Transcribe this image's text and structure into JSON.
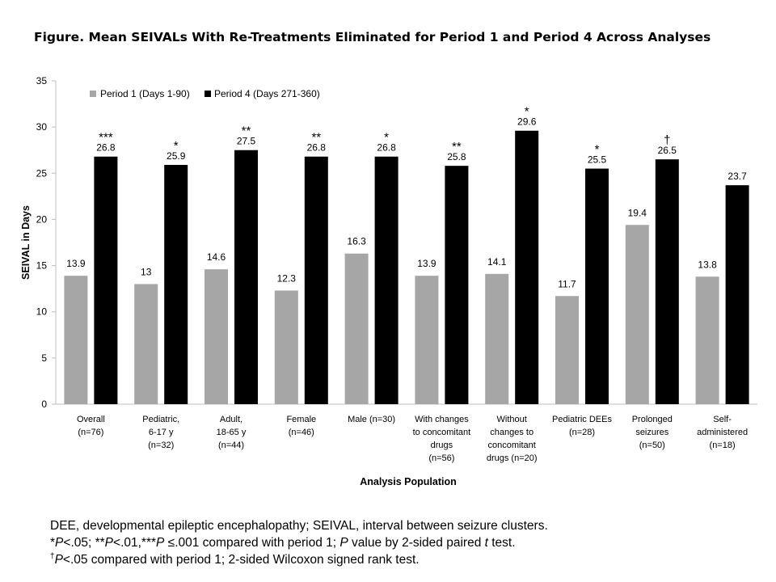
{
  "figure_title": "Figure. Mean SEIVALs With Re-Treatments Eliminated for Period 1 and Period 4 Across Analyses",
  "chart_data": {
    "type": "bar",
    "title": "Figure. Mean SEIVALs With Re-Treatments Eliminated for Period 1 and Period 4 Across Analyses",
    "xlabel": "Analysis Population",
    "ylabel": "SEIVAL in Days",
    "ylim": [
      0,
      35
    ],
    "yticks": [
      0,
      5,
      10,
      15,
      20,
      25,
      30,
      35
    ],
    "grid": false,
    "legend_position": "top-left",
    "categories": [
      [
        "Overall",
        "(n=76)"
      ],
      [
        "Pediatric,",
        "6-17 y",
        "(n=32)"
      ],
      [
        "Adult,",
        "18-65 y",
        "(n=44)"
      ],
      [
        "Female",
        "(n=46)"
      ],
      [
        "Male (n=30)"
      ],
      [
        "With changes",
        "to concomitant",
        "drugs",
        "(n=56)"
      ],
      [
        "Without",
        "changes to",
        "concomitant",
        "drugs (n=20)"
      ],
      [
        "Pediatric DEEs",
        "(n=28)"
      ],
      [
        "Prolonged",
        "seizures",
        "(n=50)"
      ],
      [
        "Self-",
        "administered",
        "(n=18)"
      ]
    ],
    "series": [
      {
        "name": "Period 1 (Days 1-90)",
        "color": "#a6a6a6",
        "values": [
          13.9,
          13,
          14.6,
          12.3,
          16.3,
          13.9,
          14.1,
          11.7,
          19.4,
          13.8
        ],
        "labels": [
          "13.9",
          "13",
          "14.6",
          "12.3",
          "16.3",
          "13.9",
          "14.1",
          "11.7",
          "19.4",
          "13.8"
        ]
      },
      {
        "name": "Period 4 (Days 271-360)",
        "color": "#000000",
        "values": [
          26.8,
          25.9,
          27.5,
          26.8,
          26.8,
          25.8,
          29.6,
          25.5,
          26.5,
          23.7
        ],
        "labels": [
          "26.8",
          "25.9",
          "27.5",
          "26.8",
          "26.8",
          "25.8",
          "29.6",
          "25.5",
          "26.5",
          "23.7"
        ]
      }
    ],
    "significance": [
      "***",
      "*",
      "**",
      "**",
      "*",
      "**",
      "*",
      "*",
      "†",
      ""
    ]
  },
  "notes": {
    "line1": "DEE, developmental epileptic encephalopathy; SEIVAL, interval between seizure clusters.",
    "line2": {
      "s1": "*",
      "p1": "P",
      "s2": "<.05; **",
      "p2": "P",
      "s3": "<.01,***",
      "p3": "P",
      "s4": " ≤.001 compared with period 1; ",
      "p4": "P",
      "s5": " value by 2-sided paired ",
      "p5": "t",
      "s6": " test."
    },
    "line3": {
      "dagger": "†",
      "p1": "P",
      "s1": "<.05 compared with period 1; 2-sided Wilcoxon signed rank test."
    }
  }
}
